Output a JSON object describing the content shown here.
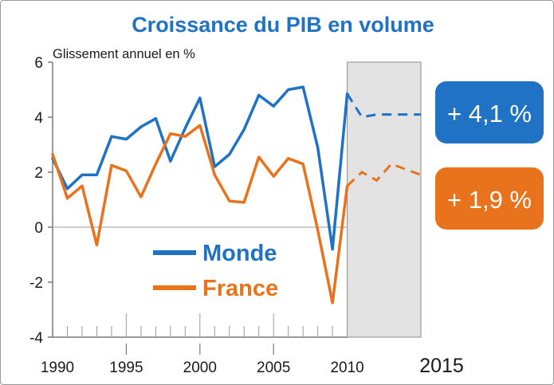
{
  "chart_data": {
    "type": "line",
    "title": "Croissance du PIB en volume",
    "ylabel": "Glissement annuel en %",
    "ylim": [
      -4,
      6
    ],
    "yticks": [
      -4,
      -2,
      0,
      2,
      4,
      6
    ],
    "ytick_labels": [
      "-4",
      "-2",
      "0",
      "2",
      "4",
      "6"
    ],
    "xlim": [
      1990,
      2015
    ],
    "xtick_labels": [
      {
        "value": 1990,
        "label": "1990"
      },
      {
        "value": 1995,
        "label": "1995"
      },
      {
        "value": 2000,
        "label": "2000"
      },
      {
        "value": 2005,
        "label": "2005"
      },
      {
        "value": 2010,
        "label": "2010"
      },
      {
        "value": 2015,
        "label": "2015"
      }
    ],
    "forecast_start": 2010,
    "series": [
      {
        "name": "Monde",
        "color": "#1f72c4",
        "values": [
          {
            "x": 1990,
            "y": 2.5
          },
          {
            "x": 1991,
            "y": 1.4
          },
          {
            "x": 1992,
            "y": 1.9
          },
          {
            "x": 1993,
            "y": 1.9
          },
          {
            "x": 1994,
            "y": 3.3
          },
          {
            "x": 1995,
            "y": 3.2
          },
          {
            "x": 1996,
            "y": 3.65
          },
          {
            "x": 1997,
            "y": 3.95
          },
          {
            "x": 1998,
            "y": 2.4
          },
          {
            "x": 1999,
            "y": 3.6
          },
          {
            "x": 2000,
            "y": 4.7
          },
          {
            "x": 2001,
            "y": 2.2
          },
          {
            "x": 2002,
            "y": 2.65
          },
          {
            "x": 2003,
            "y": 3.55
          },
          {
            "x": 2004,
            "y": 4.8
          },
          {
            "x": 2005,
            "y": 4.4
          },
          {
            "x": 2006,
            "y": 5.0
          },
          {
            "x": 2007,
            "y": 5.1
          },
          {
            "x": 2008,
            "y": 2.9
          },
          {
            "x": 2009,
            "y": -0.8
          },
          {
            "x": 2010,
            "y": 4.85
          }
        ],
        "forecast": [
          {
            "x": 2010,
            "y": 4.85
          },
          {
            "x": 2011,
            "y": 4.0
          },
          {
            "x": 2012,
            "y": 4.1
          },
          {
            "x": 2013,
            "y": 4.1
          },
          {
            "x": 2014,
            "y": 4.1
          },
          {
            "x": 2015,
            "y": 4.1
          }
        ],
        "badge": "+ 4,1 %"
      },
      {
        "name": "France",
        "color": "#e8731c",
        "values": [
          {
            "x": 1990,
            "y": 2.65
          },
          {
            "x": 1991,
            "y": 1.05
          },
          {
            "x": 1992,
            "y": 1.5
          },
          {
            "x": 1993,
            "y": -0.65
          },
          {
            "x": 1994,
            "y": 2.25
          },
          {
            "x": 1995,
            "y": 2.05
          },
          {
            "x": 1996,
            "y": 1.1
          },
          {
            "x": 1997,
            "y": 2.3
          },
          {
            "x": 1998,
            "y": 3.4
          },
          {
            "x": 1999,
            "y": 3.3
          },
          {
            "x": 2000,
            "y": 3.7
          },
          {
            "x": 2001,
            "y": 1.9
          },
          {
            "x": 2002,
            "y": 0.95
          },
          {
            "x": 2003,
            "y": 0.9
          },
          {
            "x": 2004,
            "y": 2.55
          },
          {
            "x": 2005,
            "y": 1.85
          },
          {
            "x": 2006,
            "y": 2.5
          },
          {
            "x": 2007,
            "y": 2.3
          },
          {
            "x": 2008,
            "y": -0.1
          },
          {
            "x": 2009,
            "y": -2.75
          },
          {
            "x": 2010,
            "y": 1.5
          }
        ],
        "forecast": [
          {
            "x": 2010,
            "y": 1.5
          },
          {
            "x": 2011,
            "y": 2.0
          },
          {
            "x": 2012,
            "y": 1.7
          },
          {
            "x": 2013,
            "y": 2.3
          },
          {
            "x": 2014,
            "y": 2.1
          },
          {
            "x": 2015,
            "y": 1.9
          }
        ],
        "badge": "+ 1,9 %"
      }
    ],
    "legend": [
      {
        "label": "Monde",
        "color": "#1f72c4"
      },
      {
        "label": "France",
        "color": "#e8731c"
      }
    ],
    "grid": false,
    "forecast_shading_color": "#e3e3e3"
  }
}
